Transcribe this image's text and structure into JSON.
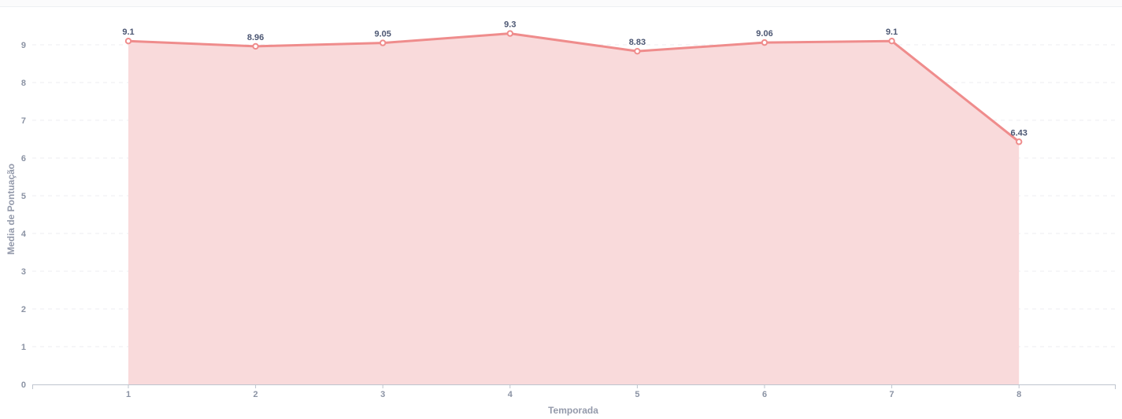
{
  "chart_data": {
    "type": "area",
    "title": "",
    "xlabel": "Temporada",
    "ylabel": "Media de Pontuação",
    "categories": [
      "1",
      "2",
      "3",
      "4",
      "5",
      "6",
      "7",
      "8"
    ],
    "series": [
      {
        "values": [
          9.1,
          8.96,
          9.05,
          9.3,
          8.83,
          9.06,
          9.1,
          6.43
        ],
        "labels": [
          "9.1",
          "8.96",
          "9.05",
          "9.3",
          "8.83",
          "9.06",
          "9.1",
          "6.43"
        ]
      }
    ],
    "yticks": [
      "0",
      "1",
      "2",
      "3",
      "4",
      "5",
      "6",
      "7",
      "8",
      "9"
    ],
    "ylim": [
      0,
      9
    ],
    "grid": "horizontal-dashed",
    "colors": {
      "line": "#ef8c8c",
      "fill": "#f9dadb",
      "grid": "#eceef2",
      "axis": "#bec4ce"
    }
  }
}
